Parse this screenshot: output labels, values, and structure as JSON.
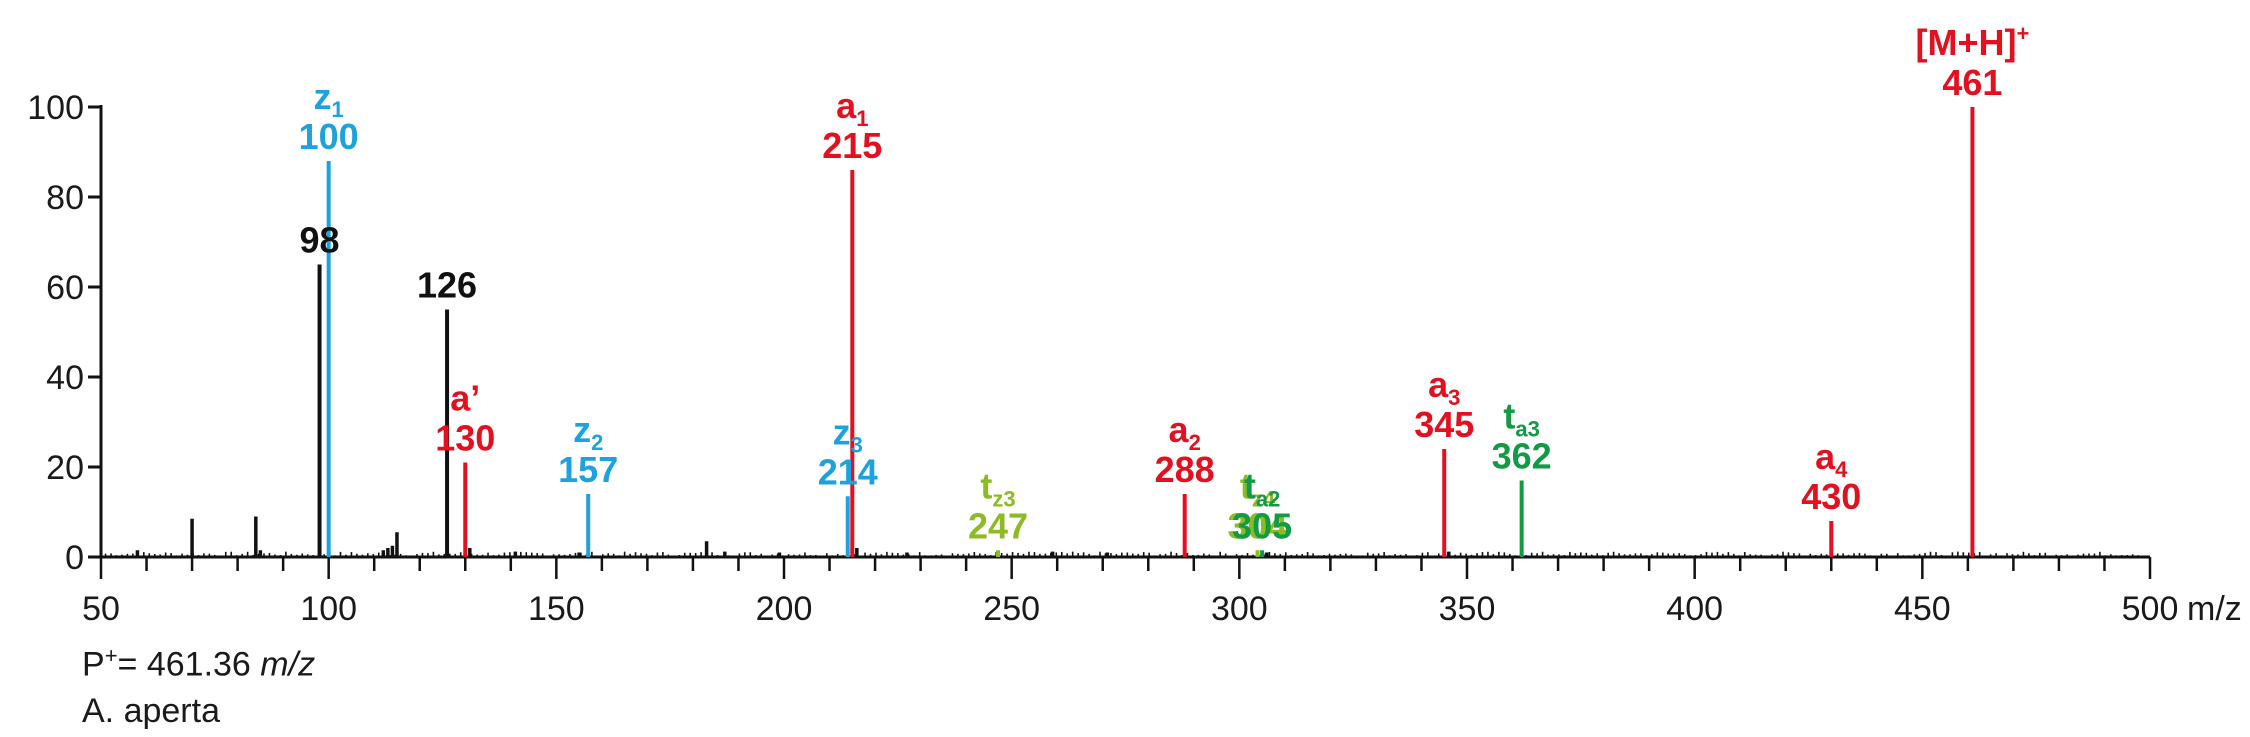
{
  "chart_data": {
    "type": "bar",
    "xlabel": "m/z",
    "ylabel": "",
    "xlim": [
      50,
      500
    ],
    "ylim": [
      0,
      100
    ],
    "x_ticks": [
      50,
      100,
      150,
      200,
      250,
      300,
      350,
      400,
      450,
      500
    ],
    "y_ticks": [
      0,
      20,
      40,
      60,
      80,
      100
    ],
    "grid": false,
    "colors": {
      "red": "#e3101f",
      "blue": "#1ea2de",
      "black": "#111111",
      "lime": "#8dbb24",
      "green": "#129a45"
    },
    "labeled_peaks": [
      {
        "mz": 98,
        "intensity": 65,
        "color": "black",
        "name": "",
        "sub": "",
        "sup": "",
        "value": "98"
      },
      {
        "mz": 100,
        "intensity": 88,
        "color": "blue",
        "name": "z",
        "sub": "1",
        "sup": "",
        "value": "100"
      },
      {
        "mz": 126,
        "intensity": 55,
        "color": "black",
        "name": "",
        "sub": "",
        "sup": "",
        "value": "126"
      },
      {
        "mz": 130,
        "intensity": 21,
        "color": "red",
        "name": "a’",
        "sub": "",
        "sup": "",
        "value": "130"
      },
      {
        "mz": 157,
        "intensity": 14,
        "color": "blue",
        "name": "z",
        "sub": "2",
        "sup": "",
        "value": "157"
      },
      {
        "mz": 214,
        "intensity": 13.5,
        "color": "blue",
        "name": "z",
        "sub": "3",
        "sup": "",
        "value": "214"
      },
      {
        "mz": 215,
        "intensity": 86,
        "color": "red",
        "name": "a",
        "sub": "1",
        "sup": "",
        "value": "215"
      },
      {
        "mz": 247,
        "intensity": 1.5,
        "color": "lime",
        "name": "t",
        "sub": "z3",
        "sup": "",
        "value": "247"
      },
      {
        "mz": 288,
        "intensity": 14,
        "color": "red",
        "name": "a",
        "sub": "2",
        "sup": "",
        "value": "288"
      },
      {
        "mz": 304,
        "intensity": 1.5,
        "color": "lime",
        "name": "t",
        "sub": "z4",
        "sup": "",
        "value": "304"
      },
      {
        "mz": 305,
        "intensity": 1.5,
        "color": "green",
        "name": "t",
        "sub": "a2",
        "sup": "",
        "value": "305"
      },
      {
        "mz": 345,
        "intensity": 24,
        "color": "red",
        "name": "a",
        "sub": "3",
        "sup": "",
        "value": "345"
      },
      {
        "mz": 362,
        "intensity": 17,
        "color": "green",
        "name": "t",
        "sub": "a3",
        "sup": "",
        "value": "362"
      },
      {
        "mz": 430,
        "intensity": 8,
        "color": "red",
        "name": "a",
        "sub": "4",
        "sup": "",
        "value": "430"
      },
      {
        "mz": 461,
        "intensity": 100,
        "color": "red",
        "name": "[M+H]",
        "sub": "",
        "sup": "+",
        "value": "461"
      }
    ],
    "minor_peaks": [
      {
        "mz": 58,
        "intensity": 1.5
      },
      {
        "mz": 70,
        "intensity": 8.5
      },
      {
        "mz": 84,
        "intensity": 9
      },
      {
        "mz": 85,
        "intensity": 1.5
      },
      {
        "mz": 112,
        "intensity": 1.5
      },
      {
        "mz": 113,
        "intensity": 2
      },
      {
        "mz": 114,
        "intensity": 2.5
      },
      {
        "mz": 115,
        "intensity": 5.5
      },
      {
        "mz": 131,
        "intensity": 2
      },
      {
        "mz": 141,
        "intensity": 1.2
      },
      {
        "mz": 155,
        "intensity": 1
      },
      {
        "mz": 183,
        "intensity": 3.5
      },
      {
        "mz": 187,
        "intensity": 1.2
      },
      {
        "mz": 199,
        "intensity": 1
      },
      {
        "mz": 216,
        "intensity": 2
      },
      {
        "mz": 227,
        "intensity": 1
      },
      {
        "mz": 259,
        "intensity": 1.2
      },
      {
        "mz": 271,
        "intensity": 1
      },
      {
        "mz": 306,
        "intensity": 1
      },
      {
        "mz": 346,
        "intensity": 1.2
      }
    ]
  },
  "annotations": {
    "precursor_prefix": "P",
    "precursor_sup": "+",
    "precursor_value": "= 461.36 ",
    "precursor_unit": "m/z",
    "species": "A. aperta"
  }
}
